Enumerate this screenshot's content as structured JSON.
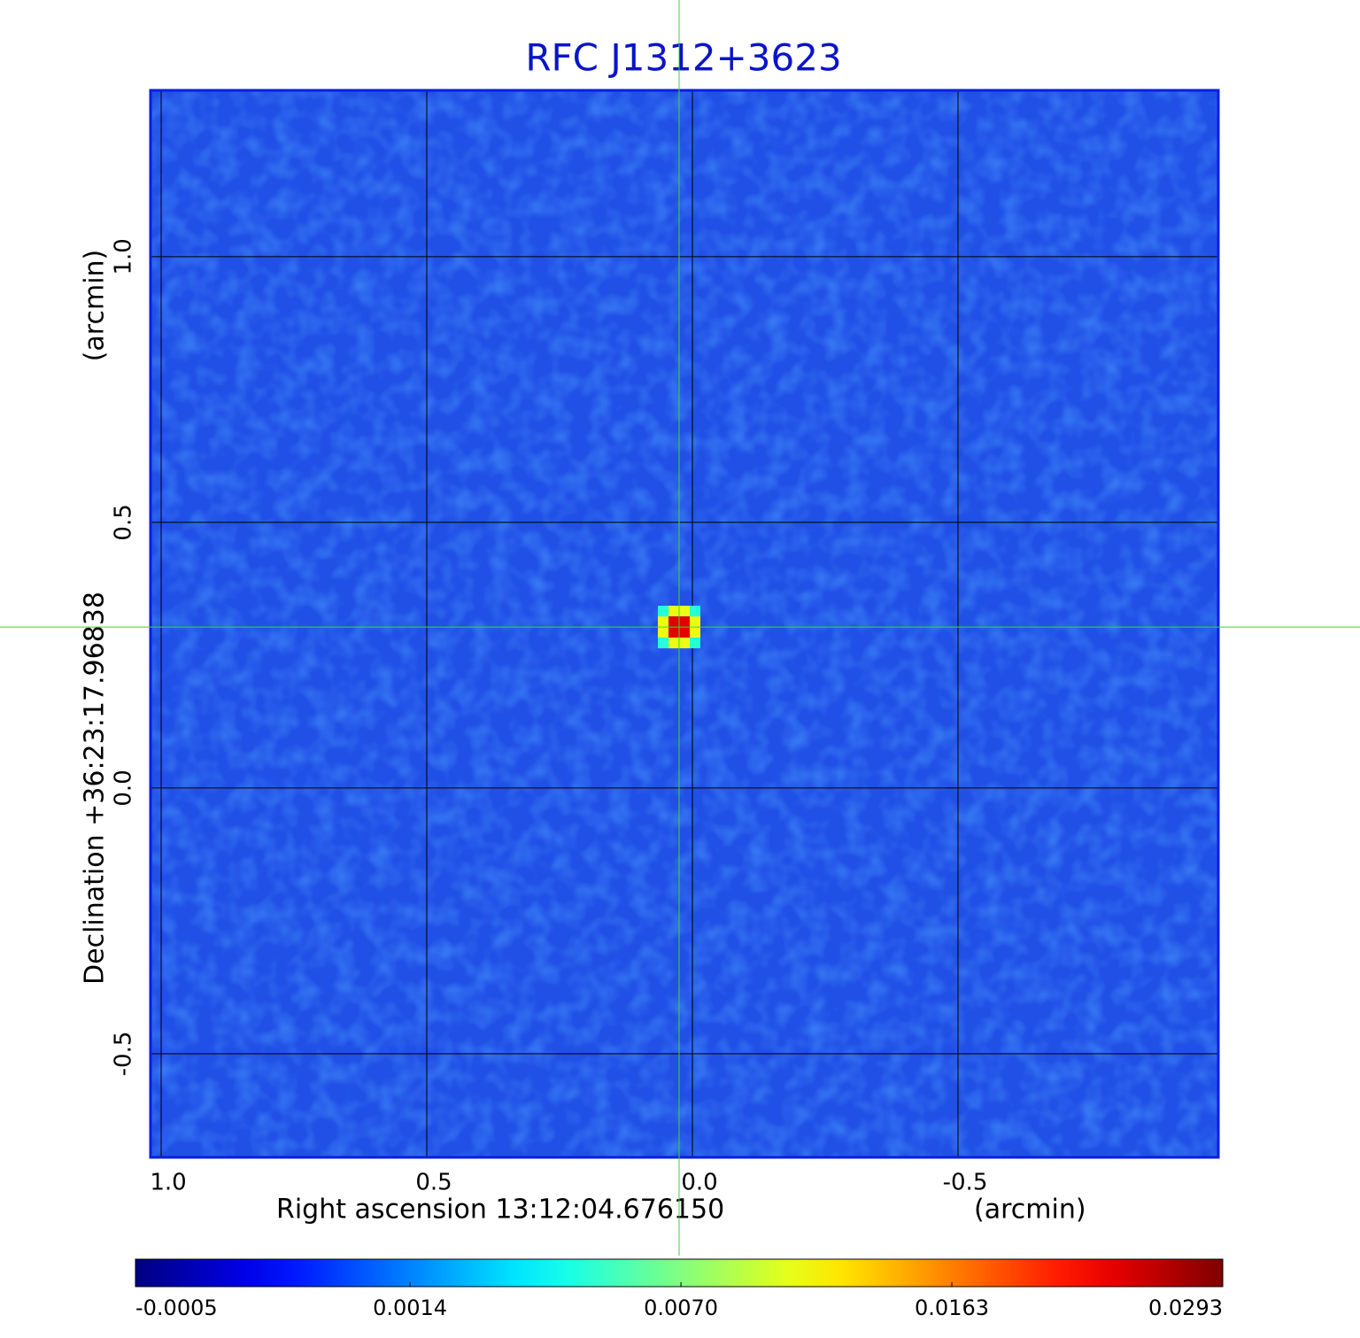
{
  "chart_data": {
    "type": "image",
    "title": "RFC J1312+3623",
    "x_label": "Right ascension  13:12:04.676150",
    "x_unit": "(arcmin)",
    "y_label": "Declination  +36:23:17.96838",
    "y_unit": "(arcmin)",
    "xlim": [
      1.02,
      -0.99
    ],
    "ylim": [
      -0.695,
      1.313
    ],
    "xticks": [
      {
        "value": 1,
        "label": "1.0"
      },
      0.5,
      {
        "value": 0,
        "label": "0.0"
      },
      -0.5
    ],
    "yticks": [
      -0.5,
      {
        "value": 0,
        "label": "0.0"
      },
      0.5,
      {
        "value": 1,
        "label": "1.0"
      }
    ],
    "grid": true,
    "colormap": "jet",
    "colorbar_scale": "sqrt",
    "clim": [
      -0.0005,
      0.0293
    ],
    "colorbar_ticks": [
      -0.0005,
      0.0014,
      {
        "value": 0.007,
        "label": "0.0070"
      },
      0.0163,
      0.0293
    ],
    "source": {
      "x": 0.025,
      "y": 0.303,
      "peak": 0.0293
    }
  }
}
